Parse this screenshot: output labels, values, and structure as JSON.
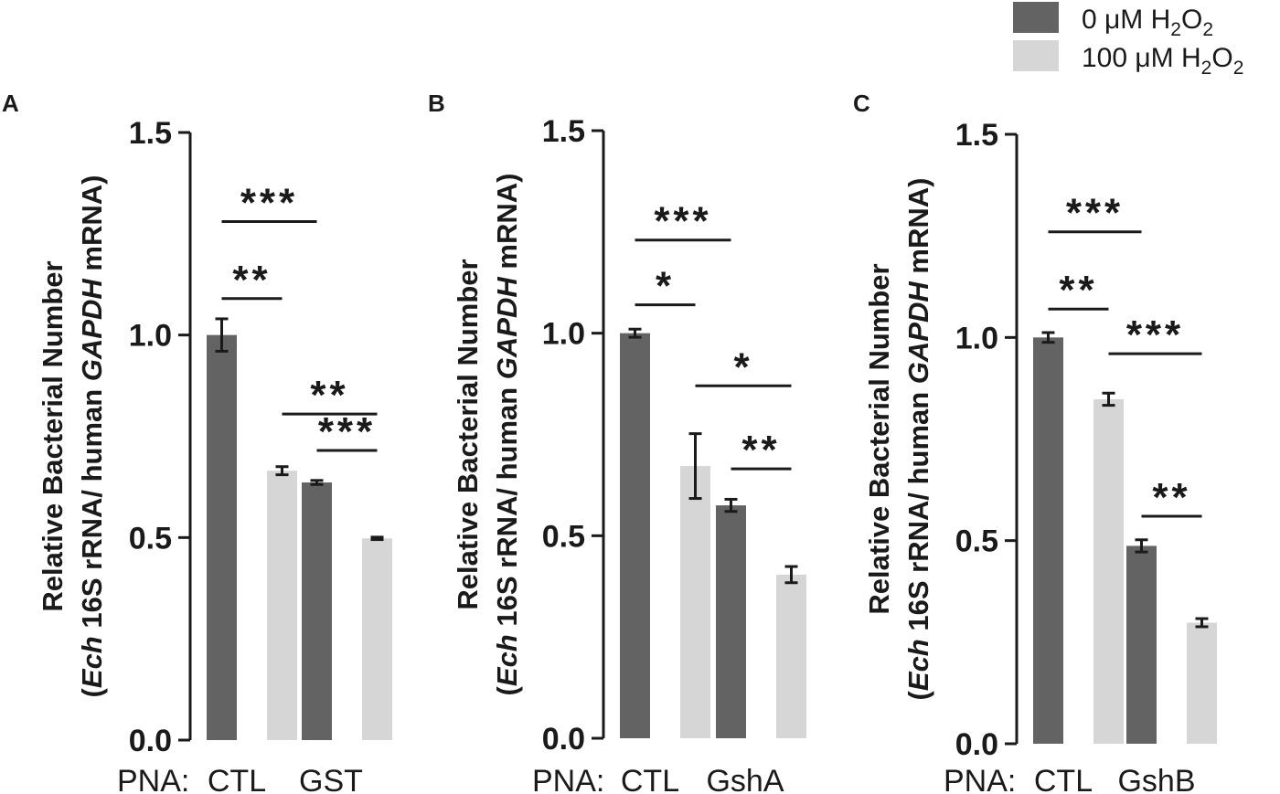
{
  "legend": {
    "entries": [
      {
        "prefix": "0 μM H",
        "sub1": "2",
        "mid": "O",
        "sub2": "2",
        "color": "#636363"
      },
      {
        "prefix": "100 μM H",
        "sub1": "2",
        "mid": "O",
        "sub2": "2",
        "color": "#d6d6d6"
      }
    ]
  },
  "ylabel": {
    "line1": "Relative Bacterial Number",
    "line2_italic1": "Ech",
    "line2_text1": " 16S rRNA/ human ",
    "line2_italic2": "GAPDH",
    "line2_text2": " mRNA"
  },
  "pna_label": "PNA:",
  "chart_data": [
    {
      "type": "bar",
      "panel": "A",
      "categories": [
        "CTL",
        "GST"
      ],
      "series": [
        {
          "name": "0 μM H2O2",
          "color": "#636363",
          "values": [
            1.0,
            0.636
          ],
          "errors": [
            0.04,
            0.005
          ]
        },
        {
          "name": "100 μM H2O2",
          "color": "#d6d6d6",
          "values": [
            0.665,
            0.498
          ],
          "errors": [
            0.01,
            0.003
          ]
        }
      ],
      "ylim": [
        0,
        1.5
      ],
      "yticks": [
        "0.0",
        "0.5",
        "1.0",
        "1.5"
      ],
      "significance": [
        {
          "label": "***",
          "from": [
            0,
            0
          ],
          "to": [
            1,
            0
          ],
          "y": 1.28
        },
        {
          "label": "**",
          "from": [
            0,
            0
          ],
          "to": [
            0,
            1
          ],
          "y": 1.09
        },
        {
          "label": "**",
          "from": [
            0,
            1
          ],
          "to": [
            1,
            1
          ],
          "y": 0.805
        },
        {
          "label": "***",
          "from": [
            1,
            0
          ],
          "to": [
            1,
            1
          ],
          "y": 0.715
        }
      ]
    },
    {
      "type": "bar",
      "panel": "B",
      "categories": [
        "CTL",
        "GshA"
      ],
      "series": [
        {
          "name": "0 μM H2O2",
          "color": "#636363",
          "values": [
            1.0,
            0.575
          ],
          "errors": [
            0.01,
            0.015
          ]
        },
        {
          "name": "100 μM H2O2",
          "color": "#d6d6d6",
          "values": [
            0.672,
            0.404
          ],
          "errors": [
            0.08,
            0.02
          ]
        }
      ],
      "ylim": [
        0,
        1.5
      ],
      "yticks": [
        "0.0",
        "0.5",
        "1.0",
        "1.5"
      ],
      "significance": [
        {
          "label": "***",
          "from": [
            0,
            0
          ],
          "to": [
            1,
            0
          ],
          "y": 1.23
        },
        {
          "label": "*",
          "from": [
            0,
            0
          ],
          "to": [
            0,
            1
          ],
          "y": 1.07
        },
        {
          "label": "*",
          "from": [
            0,
            1
          ],
          "to": [
            1,
            1
          ],
          "y": 0.87
        },
        {
          "label": "**",
          "from": [
            1,
            0
          ],
          "to": [
            1,
            1
          ],
          "y": 0.665
        }
      ]
    },
    {
      "type": "bar",
      "panel": "C",
      "categories": [
        "CTL",
        "GshB"
      ],
      "series": [
        {
          "name": "0 μM H2O2",
          "color": "#636363",
          "values": [
            1.0,
            0.487
          ],
          "errors": [
            0.012,
            0.015
          ]
        },
        {
          "name": "100 μM H2O2",
          "color": "#d6d6d6",
          "values": [
            0.848,
            0.298
          ],
          "errors": [
            0.015,
            0.01
          ]
        }
      ],
      "ylim": [
        0,
        1.5
      ],
      "yticks": [
        "0.0",
        "0.5",
        "1.0",
        "1.5"
      ],
      "significance": [
        {
          "label": "***",
          "from": [
            0,
            0
          ],
          "to": [
            1,
            0
          ],
          "y": 1.26
        },
        {
          "label": "**",
          "from": [
            0,
            0
          ],
          "to": [
            0,
            1
          ],
          "y": 1.07
        },
        {
          "label": "***",
          "from": [
            0,
            1
          ],
          "to": [
            1,
            1
          ],
          "y": 0.96
        },
        {
          "label": "**",
          "from": [
            1,
            0
          ],
          "to": [
            1,
            1
          ],
          "y": 0.56
        }
      ]
    }
  ]
}
